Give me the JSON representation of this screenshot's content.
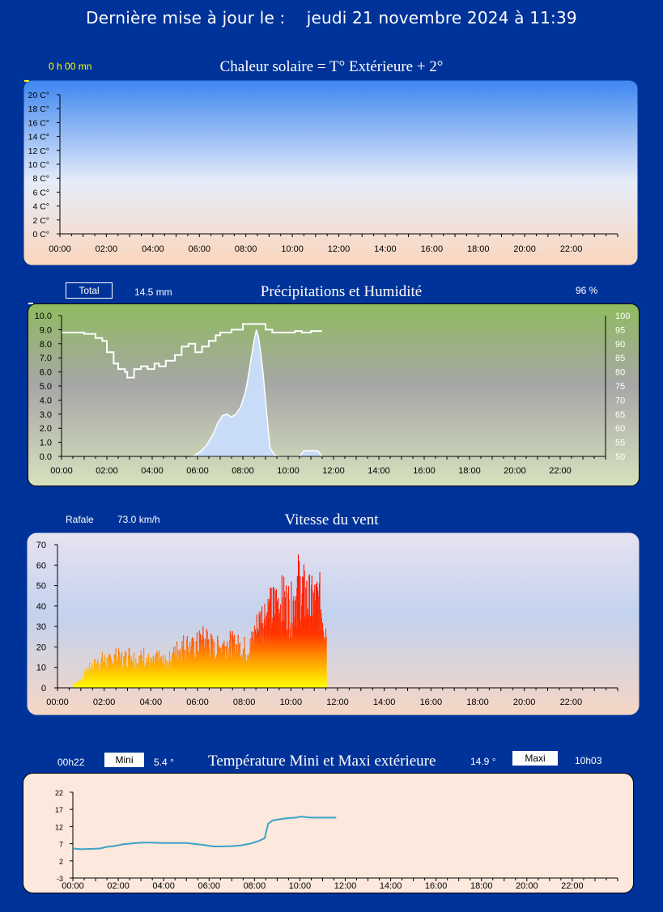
{
  "header": {
    "prefix": "Dernière mise à jour le :",
    "datetime": "jeudi 21 novembre 2024 à 11:39"
  },
  "colors": {
    "page_bg": "#003399",
    "humidity_line": "#ffffff",
    "temp_line": "#3aa3c8",
    "rain_fill": "#c8dcf8"
  },
  "x_ticks": [
    "00:00",
    "02:00",
    "04:00",
    "06:00",
    "08:00",
    "10:00",
    "12:00",
    "14:00",
    "16:00",
    "18:00",
    "20:00",
    "22:00"
  ],
  "charts": {
    "solar": {
      "title": "Chaleur solaire = T° Extérieure + 2°",
      "duration": "0 h 00 mn",
      "y_ticks": [
        "0 C°",
        "2 C°",
        "4 C°",
        "6 C°",
        "8 C°",
        "10 C°",
        "12 C°",
        "14 C°",
        "16 C°",
        "18 C°",
        "20 C°"
      ]
    },
    "rain": {
      "title": "Précipitations et Humidité",
      "total_label": "Total",
      "total_value": "14.5  mm",
      "humidity_value": "96 %",
      "y_ticks": [
        "0.0",
        "1.0",
        "2.0",
        "3.0",
        "4.0",
        "5.0",
        "6.0",
        "7.0",
        "8.0",
        "9.0",
        "10.0"
      ],
      "y2_ticks": [
        "50",
        "55",
        "60",
        "65",
        "70",
        "75",
        "80",
        "85",
        "90",
        "95",
        "100"
      ]
    },
    "wind": {
      "title": "Vitesse du vent",
      "gust_label": "Rafale",
      "gust_value": "73.0 km/h",
      "y_ticks": [
        "0",
        "10",
        "20",
        "30",
        "40",
        "50",
        "60",
        "70"
      ]
    },
    "temp": {
      "title": "Température Mini et Maxi extérieure",
      "min_time": "00h22",
      "min_label": "Mini",
      "min_value": "5.4 °",
      "max_value": "14.9 °",
      "max_label": "Maxi",
      "max_time": "10h03",
      "y_ticks": [
        "-3",
        "2",
        "7",
        "12",
        "17",
        "22"
      ]
    }
  },
  "chart_data": [
    {
      "type": "area",
      "title": "Chaleur solaire = T° Extérieure + 2°",
      "ylim": [
        0,
        20
      ],
      "x_range": [
        "00:00",
        "24:00"
      ],
      "series": []
    },
    {
      "type": "area",
      "title": "Précipitations et Humidité",
      "ylim": [
        0,
        10
      ],
      "y2lim": [
        50,
        100
      ],
      "x_range": [
        "00:00",
        "24:00"
      ],
      "series": [
        {
          "name": "Précipitations",
          "axis": "left",
          "x": [
            5.8,
            6.1,
            6.4,
            6.7,
            6.9,
            7.1,
            7.3,
            7.5,
            7.7,
            7.9,
            8.0,
            8.1,
            8.2,
            8.3,
            8.4,
            8.5,
            8.6,
            8.7,
            8.8,
            8.9,
            9.0,
            9.1,
            9.2,
            9.4,
            9.6,
            10.0,
            10.5,
            10.7,
            11.0,
            11.3,
            11.5
          ],
          "y": [
            0,
            0.3,
            0.8,
            1.6,
            2.4,
            2.9,
            3.0,
            2.8,
            3.0,
            3.5,
            4.0,
            4.5,
            5.3,
            6.3,
            7.3,
            8.3,
            9.0,
            8.4,
            7.2,
            5.8,
            4.0,
            2.2,
            0.6,
            0.1,
            0,
            0,
            0,
            0.4,
            0.4,
            0.4,
            0
          ]
        },
        {
          "name": "Humidité",
          "axis": "right",
          "x": [
            0,
            0.5,
            1.0,
            1.5,
            1.8,
            2.0,
            2.3,
            2.5,
            2.8,
            2.9,
            3.2,
            3.5,
            3.8,
            4.1,
            4.3,
            4.6,
            5.0,
            5.3,
            5.6,
            5.9,
            6.2,
            6.5,
            6.8,
            7.0,
            7.5,
            8.0,
            8.5,
            8.8,
            9.0,
            9.3,
            9.6,
            10.0,
            10.3,
            10.6,
            11.0,
            11.3,
            11.5
          ],
          "y": [
            94,
            94,
            93.5,
            92,
            91,
            87,
            83,
            81,
            80,
            78,
            81,
            82,
            81,
            83,
            82,
            84,
            86,
            89,
            90,
            87,
            89,
            91,
            93,
            94,
            95,
            97,
            97,
            97,
            95,
            94,
            94,
            94,
            94.5,
            94,
            94.5,
            94.5,
            94.5
          ]
        }
      ]
    },
    {
      "type": "bar",
      "title": "Vitesse du vent",
      "ylim": [
        0,
        70
      ],
      "x_range": [
        "00:00",
        "24:00"
      ],
      "series": [
        {
          "name": "Rafale",
          "x": [
            0.7,
            1.0,
            1.3,
            1.6,
            1.9,
            2.2,
            2.5,
            2.8,
            3.1,
            3.4,
            3.7,
            4.0,
            4.3,
            4.6,
            4.9,
            5.2,
            5.5,
            5.8,
            6.1,
            6.4,
            6.7,
            7.0,
            7.3,
            7.6,
            7.9,
            8.2,
            8.5,
            8.8,
            9.1,
            9.4,
            9.7,
            10.0,
            10.3,
            10.6,
            10.9,
            11.2,
            11.5
          ],
          "y": [
            3,
            5,
            12,
            15,
            18,
            17,
            20,
            18,
            22,
            17,
            21,
            15,
            19,
            16,
            20,
            26,
            28,
            25,
            30,
            32,
            24,
            28,
            29,
            27,
            26,
            25,
            38,
            48,
            50,
            55,
            56,
            52,
            67,
            60,
            55,
            58,
            39
          ]
        }
      ]
    },
    {
      "type": "line",
      "title": "Température Mini et Maxi extérieure",
      "ylim": [
        -3,
        22
      ],
      "x_range": [
        "00:00",
        "24:00"
      ],
      "series": [
        {
          "name": "Température",
          "x": [
            0,
            0.37,
            0.8,
            1.2,
            1.5,
            1.8,
            2.2,
            2.6,
            3.0,
            3.5,
            4.0,
            4.5,
            5.0,
            5.4,
            5.8,
            6.2,
            6.6,
            7.0,
            7.4,
            7.8,
            8.2,
            8.45,
            8.6,
            8.8,
            9.0,
            9.4,
            9.8,
            10.05,
            10.5,
            11.0,
            11.6
          ],
          "y": [
            5.6,
            5.4,
            5.5,
            5.6,
            6.1,
            6.3,
            6.8,
            7.1,
            7.3,
            7.3,
            7.2,
            7.2,
            7.2,
            6.9,
            6.6,
            6.2,
            6.2,
            6.3,
            6.5,
            7.0,
            7.8,
            8.6,
            12.8,
            13.8,
            14.0,
            14.4,
            14.6,
            14.9,
            14.6,
            14.6,
            14.6
          ]
        }
      ]
    }
  ]
}
